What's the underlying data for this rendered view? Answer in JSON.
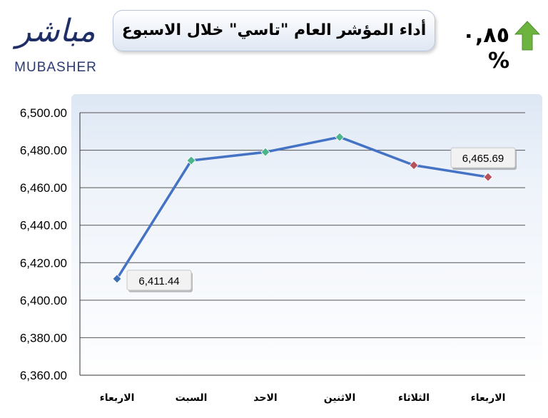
{
  "logo": {
    "arabic": "مباشر",
    "english": "MUBASHER"
  },
  "header": {
    "title": "أداء المؤشر العام \"تاسي\" خلال الاسبوع",
    "change_text": "٠,٨٥ %",
    "change_direction": "up",
    "arrow_color": "#6cb33f"
  },
  "chart_data": {
    "type": "line",
    "categories": [
      "الاربعاء",
      "السبت",
      "الاحد",
      "الاثنين",
      "الثلاثاء",
      "الاربعاء"
    ],
    "series": [
      {
        "values": [
          6411.44,
          6474.5,
          6479.0,
          6487.0,
          6472.0,
          6465.69
        ]
      }
    ],
    "marker_colors": [
      "#3d6fb6",
      "#4db58a",
      "#4db58a",
      "#4db58a",
      "#b5525a",
      "#b5525a"
    ],
    "line_color": "#4472c4",
    "ylim": [
      6360,
      6500
    ],
    "yticks": [
      "6,360.00",
      "6,380.00",
      "6,400.00",
      "6,420.00",
      "6,440.00",
      "6,460.00",
      "6,480.00",
      "6,500.00"
    ],
    "data_labels": [
      {
        "index": 0,
        "text": "6,411.44"
      },
      {
        "index": 5,
        "text": "6,465.69"
      }
    ],
    "grid": true
  }
}
